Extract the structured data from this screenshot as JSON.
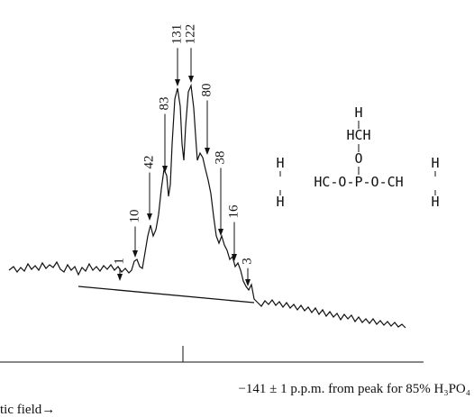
{
  "peaks": [
    1,
    10,
    42,
    83,
    131,
    122,
    80,
    38,
    16,
    3
  ],
  "structure": {
    "top_h": "H",
    "methyl": "HCH",
    "bridge_o": "O",
    "left_top_h": "H",
    "right_top_h": "H",
    "chain": "HC-O-P-O-CH",
    "left_bottom_h": "H",
    "right_bottom_h": "H"
  },
  "caption": "−141 ± 1 p.p.m. from peak for 85% H₃PO₄",
  "axis_label": "tic field→"
}
